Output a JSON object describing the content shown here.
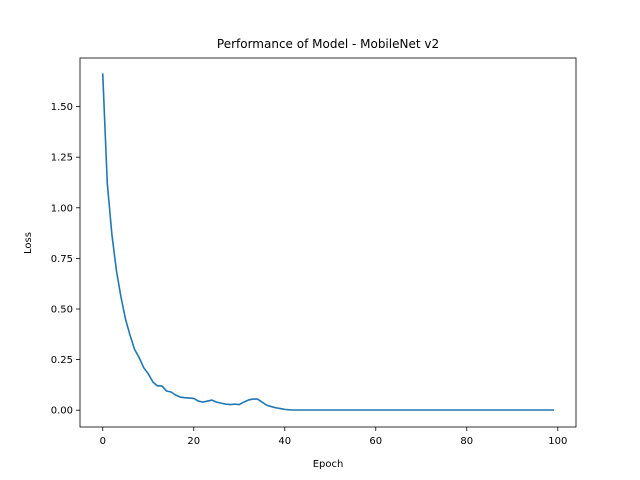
{
  "chart_data": {
    "type": "line",
    "title": "Performance of Model - MobileNet v2",
    "xlabel": "Epoch",
    "ylabel": "Loss",
    "xlim": [
      -5,
      104
    ],
    "ylim": [
      -0.083,
      1.74
    ],
    "xticks": [
      0,
      20,
      40,
      60,
      80,
      100
    ],
    "xtick_labels": [
      "0",
      "20",
      "40",
      "60",
      "80",
      "100"
    ],
    "yticks": [
      0.0,
      0.25,
      0.5,
      0.75,
      1.0,
      1.25,
      1.5
    ],
    "ytick_labels": [
      "0.00",
      "0.25",
      "0.50",
      "0.75",
      "1.00",
      "1.25",
      "1.50"
    ],
    "grid": false,
    "series_color": "#1f77b4",
    "series": [
      {
        "x": [
          0,
          1,
          2,
          3,
          4,
          5,
          6,
          7,
          8,
          9,
          10,
          11,
          12,
          13,
          14,
          15,
          16,
          17,
          18,
          19,
          20,
          21,
          22,
          23,
          24,
          25,
          26,
          27,
          28,
          29,
          30,
          31,
          32,
          33,
          34,
          35,
          36,
          37,
          38,
          39,
          40,
          41,
          42,
          43,
          44,
          45,
          46,
          47,
          48,
          49,
          50,
          51,
          52,
          53,
          54,
          55,
          56,
          57,
          58,
          59,
          60,
          61,
          62,
          63,
          64,
          65,
          66,
          67,
          68,
          69,
          70,
          71,
          72,
          73,
          74,
          75,
          76,
          77,
          78,
          79,
          80,
          81,
          82,
          83,
          84,
          85,
          86,
          87,
          88,
          89,
          90,
          91,
          92,
          93,
          94,
          95,
          96,
          97,
          98,
          99
        ],
        "values": [
          1.66,
          1.12,
          0.87,
          0.69,
          0.56,
          0.45,
          0.37,
          0.3,
          0.26,
          0.21,
          0.18,
          0.14,
          0.12,
          0.12,
          0.095,
          0.09,
          0.075,
          0.065,
          0.062,
          0.06,
          0.058,
          0.045,
          0.04,
          0.045,
          0.05,
          0.04,
          0.035,
          0.03,
          0.028,
          0.03,
          0.028,
          0.04,
          0.05,
          0.055,
          0.055,
          0.04,
          0.025,
          0.018,
          0.012,
          0.008,
          0.004,
          0.002,
          0.001,
          0.001,
          0.001,
          0.001,
          0.001,
          0.001,
          0.001,
          0.001,
          0.001,
          0.001,
          0.001,
          0.001,
          0.001,
          0.001,
          0.001,
          0.001,
          0.001,
          0.001,
          0.001,
          0.001,
          0.001,
          0.001,
          0.001,
          0.001,
          0.001,
          0.001,
          0.001,
          0.001,
          0.001,
          0.001,
          0.001,
          0.001,
          0.001,
          0.001,
          0.001,
          0.001,
          0.001,
          0.001,
          0.001,
          0.001,
          0.001,
          0.001,
          0.001,
          0.001,
          0.001,
          0.001,
          0.001,
          0.001,
          0.001,
          0.001,
          0.001,
          0.001,
          0.001,
          0.001,
          0.001,
          0.001,
          0.001,
          0.001
        ]
      }
    ]
  }
}
